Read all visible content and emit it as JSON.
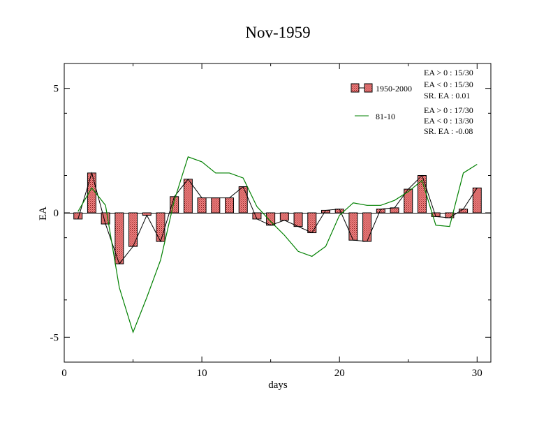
{
  "chart_data": {
    "type": "bar",
    "title": "Nov-1959",
    "xlabel": "days",
    "ylabel": "EA",
    "xlim": [
      0,
      31
    ],
    "ylim": [
      -6,
      6
    ],
    "x_ticks": [
      0,
      10,
      20,
      30
    ],
    "y_ticks": [
      -5,
      0,
      5
    ],
    "x": [
      1,
      2,
      3,
      4,
      5,
      6,
      7,
      8,
      9,
      10,
      11,
      12,
      13,
      14,
      15,
      16,
      17,
      18,
      19,
      20,
      21,
      22,
      23,
      24,
      25,
      26,
      27,
      28,
      29,
      30
    ],
    "series": [
      {
        "name": "1950-2000",
        "type": "bar",
        "color": "#e05a5a",
        "values": [
          -0.25,
          1.6,
          -0.45,
          -2.05,
          -1.35,
          -0.1,
          -1.15,
          0.65,
          1.35,
          0.6,
          0.6,
          0.6,
          1.05,
          -0.25,
          -0.5,
          -0.3,
          -0.55,
          -0.8,
          0.1,
          0.15,
          -1.1,
          -1.15,
          0.15,
          0.2,
          0.95,
          1.5,
          -0.15,
          -0.2,
          0.15,
          1.0
        ]
      },
      {
        "name": "81-10",
        "type": "line",
        "color": "#008000",
        "values": [
          0.05,
          1.0,
          0.3,
          -3.0,
          -4.8,
          -3.4,
          -1.9,
          0.5,
          2.25,
          2.05,
          1.6,
          1.6,
          1.4,
          0.25,
          -0.35,
          -0.9,
          -1.55,
          -1.75,
          -1.35,
          -0.1,
          0.4,
          0.3,
          0.3,
          0.5,
          0.85,
          1.3,
          -0.5,
          -0.55,
          1.6,
          1.95
        ]
      }
    ],
    "legend": {
      "placement": "top-right",
      "entries": [
        {
          "label": "1950-2000",
          "stats": [
            "EA > 0 : 15/30",
            "EA < 0 : 15/30",
            "SR. EA :  0.01"
          ]
        },
        {
          "label": "81-10",
          "stats": [
            "EA > 0 : 17/30",
            "EA < 0 : 13/30",
            "SR. EA : -0.08"
          ]
        }
      ]
    }
  }
}
